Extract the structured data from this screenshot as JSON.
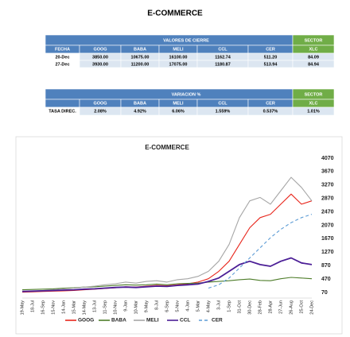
{
  "title": "E-COMMERCE",
  "closing_table": {
    "group_header": "VALORES DE CIERRE",
    "sector_header": "SECTOR",
    "sector_column": "XLC",
    "columns": [
      "FECHA",
      "GOOG",
      "BABA",
      "MELI",
      "CCL",
      "CER"
    ],
    "rows": [
      [
        "20-Dec",
        "3850.00",
        "10675.00",
        "16100.00",
        "1162.74",
        "511.20",
        "84.09"
      ],
      [
        "27-Dec",
        "3930.00",
        "11200.00",
        "17075.00",
        "1180.87",
        "513.94",
        "84.94"
      ]
    ]
  },
  "variation_table": {
    "group_header": "VARIACION %",
    "sector_header": "SECTOR",
    "sector_column": "XLC",
    "columns": [
      "GOOG",
      "BABA",
      "MELI",
      "CCL",
      "CER"
    ],
    "rows": [
      [
        "TASA DIREC.",
        "2.08%",
        "4.92%",
        "6.06%",
        "1.559%",
        "0.537%",
        "1.01%"
      ]
    ]
  },
  "chart_data": {
    "type": "line",
    "title": "E-COMMERCE",
    "categories": [
      "19-May",
      "18-Jul",
      "16-Sep",
      "15-Nov",
      "14-Jan",
      "15-Mar",
      "14-May",
      "13-Jul",
      "11-Sep",
      "10-Nov",
      "9-Jan",
      "10-Mar",
      "9-May",
      "8-Jul",
      "6-Sep",
      "5-Nov",
      "4-Jan",
      "5-Mar",
      "4-May",
      "3-Jul",
      "1-Sep",
      "31-Oct",
      "30-Dec",
      "28-Feb",
      "28-Apr",
      "27-Jun",
      "26-Aug",
      "25-Oct",
      "24-Dec"
    ],
    "series": [
      {
        "name": "GOOG",
        "color": "#e8261c",
        "values": [
          80,
          90,
          100,
          110,
          120,
          130,
          150,
          170,
          190,
          210,
          240,
          230,
          260,
          280,
          270,
          300,
          330,
          380,
          480,
          700,
          1000,
          1500,
          2000,
          2300,
          2400,
          2700,
          3000,
          2700,
          2800
        ]
      },
      {
        "name": "BABA",
        "color": "#4e7d2a",
        "values": [
          150,
          160,
          170,
          180,
          200,
          210,
          230,
          240,
          260,
          280,
          300,
          290,
          300,
          320,
          300,
          330,
          340,
          350,
          380,
          400,
          420,
          450,
          470,
          430,
          420,
          480,
          520,
          500,
          480
        ]
      },
      {
        "name": "MELI",
        "color": "#a6a6a6",
        "values": [
          100,
          110,
          130,
          150,
          180,
          200,
          230,
          260,
          300,
          330,
          380,
          350,
          400,
          420,
          380,
          450,
          480,
          550,
          700,
          1000,
          1500,
          2300,
          2800,
          2900,
          2700,
          3100,
          3500,
          3200,
          2800
        ]
      },
      {
        "name": "CCL",
        "color": "#4b1e96",
        "values": [
          100,
          110,
          120,
          130,
          140,
          150,
          170,
          180,
          200,
          220,
          230,
          220,
          240,
          260,
          250,
          280,
          300,
          320,
          400,
          500,
          700,
          900,
          1000,
          900,
          850,
          1000,
          1100,
          950,
          900
        ]
      },
      {
        "name": "CER",
        "color": "#5b9bd5",
        "dashed": true,
        "values": [
          null,
          null,
          null,
          null,
          null,
          null,
          null,
          null,
          null,
          null,
          null,
          null,
          null,
          null,
          null,
          null,
          null,
          null,
          200,
          300,
          500,
          800,
          1100,
          1400,
          1700,
          1950,
          2150,
          2300,
          2400
        ]
      }
    ],
    "ylim": [
      70,
      4070
    ],
    "yticks": [
      70,
      470,
      870,
      1270,
      1670,
      2070,
      2470,
      2870,
      3270,
      3670,
      4070
    ],
    "grid": false,
    "legend": "bottom"
  }
}
